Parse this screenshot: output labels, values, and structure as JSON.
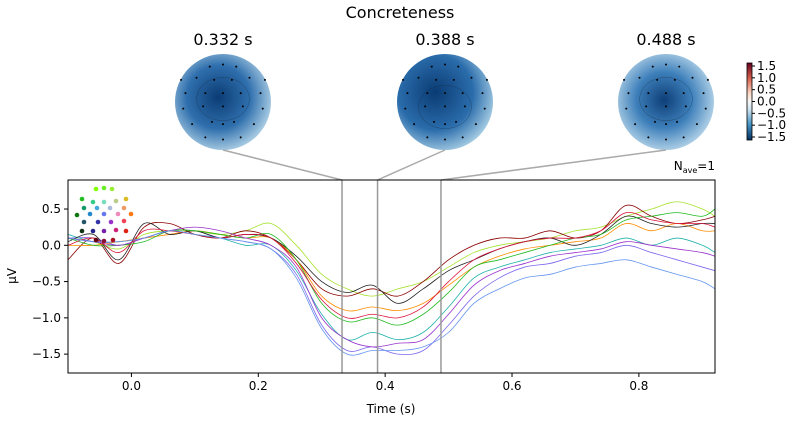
{
  "chart_data": {
    "type": "line",
    "title": "Concreteness",
    "xlabel": "Time (s)",
    "ylabel": "µV",
    "xlim": [
      -0.1,
      0.92
    ],
    "ylim": [
      -1.76,
      0.9
    ],
    "xticks": [
      "0.0",
      "0.2",
      "0.4",
      "0.6",
      "0.8"
    ],
    "yticks": [
      "0.5",
      "0.0",
      "−0.5",
      "−1.0",
      "−1.5"
    ],
    "annotation": {
      "prefix": "N",
      "subscript": "ave",
      "suffix": "=1"
    },
    "grid": false,
    "topomap_times": [
      0.332,
      0.388,
      0.488
    ],
    "topomap_labels": [
      "0.332 s",
      "0.388 s",
      "0.488 s"
    ],
    "colorbar": {
      "ticks": [
        "1.5",
        "1.0",
        "0.5",
        "0.0",
        "−0.5",
        "−1.0",
        "−1.5"
      ],
      "range": [
        -1.5,
        1.5
      ],
      "colormap": "RdBu_r"
    },
    "x": [
      -0.1,
      -0.06,
      -0.02,
      0.02,
      0.06,
      0.1,
      0.14,
      0.18,
      0.22,
      0.26,
      0.3,
      0.34,
      0.38,
      0.42,
      0.46,
      0.5,
      0.54,
      0.58,
      0.62,
      0.66,
      0.7,
      0.74,
      0.78,
      0.82,
      0.86,
      0.9,
      0.92
    ],
    "series": [
      {
        "color": "#a6e22e",
        "values": [
          0.1,
          0.05,
          -0.05,
          0.15,
          0.2,
          0.2,
          0.15,
          0.2,
          0.3,
          0.0,
          -0.4,
          -0.6,
          -0.7,
          -0.6,
          -0.5,
          -0.3,
          -0.1,
          0.0,
          0.05,
          0.1,
          0.2,
          0.25,
          0.4,
          0.5,
          0.6,
          0.5,
          0.4
        ]
      },
      {
        "color": "#7b68ee",
        "values": [
          0.1,
          0.1,
          0.0,
          0.1,
          0.2,
          0.2,
          0.1,
          0.05,
          -0.05,
          -0.4,
          -1.1,
          -1.45,
          -1.4,
          -1.5,
          -1.45,
          -1.1,
          -0.7,
          -0.45,
          -0.3,
          -0.25,
          -0.15,
          -0.1,
          0.0,
          -0.1,
          -0.2,
          -0.3,
          -0.35
        ]
      },
      {
        "color": "#8b0000",
        "values": [
          -0.2,
          0.1,
          -0.25,
          0.25,
          0.3,
          0.15,
          0.1,
          0.2,
          0.1,
          -0.2,
          -0.6,
          -0.7,
          -0.6,
          -0.7,
          -0.5,
          -0.2,
          0.0,
          0.1,
          0.1,
          0.2,
          0.1,
          0.2,
          0.55,
          0.4,
          0.3,
          0.35,
          0.4
        ]
      },
      {
        "color": "#20b2aa",
        "values": [
          0.15,
          0.05,
          0.05,
          0.1,
          0.2,
          0.15,
          0.1,
          0.0,
          0.0,
          -0.35,
          -0.95,
          -1.3,
          -1.2,
          -1.3,
          -1.2,
          -0.85,
          -0.45,
          -0.3,
          -0.2,
          -0.1,
          -0.05,
          0.0,
          0.1,
          0.0,
          0.1,
          0.0,
          -0.1
        ]
      },
      {
        "color": "#ff8c00",
        "values": [
          0.0,
          0.0,
          0.05,
          0.1,
          0.15,
          0.2,
          0.15,
          0.1,
          0.1,
          -0.2,
          -0.7,
          -0.9,
          -0.85,
          -0.9,
          -0.8,
          -0.55,
          -0.3,
          -0.15,
          -0.05,
          0.0,
          0.05,
          0.1,
          0.3,
          0.2,
          0.3,
          0.2,
          0.2
        ]
      },
      {
        "color": "#222222",
        "values": [
          0.05,
          0.15,
          -0.2,
          0.3,
          0.15,
          0.2,
          0.1,
          0.15,
          0.1,
          -0.15,
          -0.5,
          -0.65,
          -0.55,
          -0.8,
          -0.6,
          -0.35,
          -0.2,
          -0.05,
          0.05,
          0.1,
          0.0,
          0.15,
          0.4,
          0.3,
          0.25,
          0.3,
          0.3
        ]
      },
      {
        "color": "#22bb22",
        "values": [
          0.1,
          0.0,
          0.0,
          0.05,
          0.2,
          0.2,
          0.15,
          0.1,
          0.15,
          -0.2,
          -0.8,
          -1.05,
          -1.0,
          -1.1,
          -0.95,
          -0.65,
          -0.3,
          -0.2,
          -0.1,
          0.0,
          0.1,
          0.15,
          0.35,
          0.4,
          0.45,
          0.4,
          0.5
        ]
      },
      {
        "color": "#9932cc",
        "values": [
          0.1,
          0.05,
          0.0,
          0.1,
          0.2,
          0.25,
          0.2,
          0.1,
          0.0,
          -0.3,
          -1.0,
          -1.3,
          -1.4,
          -1.35,
          -1.3,
          -0.95,
          -0.55,
          -0.35,
          -0.25,
          -0.15,
          -0.1,
          -0.05,
          0.05,
          0.0,
          -0.05,
          -0.1,
          -0.15
        ]
      },
      {
        "color": "#dc143c",
        "values": [
          0.0,
          0.1,
          -0.1,
          0.2,
          0.2,
          0.15,
          0.1,
          0.15,
          0.1,
          -0.25,
          -0.75,
          -1.0,
          -0.95,
          -1.0,
          -0.85,
          -0.5,
          -0.2,
          -0.05,
          0.05,
          0.1,
          0.1,
          0.2,
          0.45,
          0.35,
          0.3,
          0.3,
          0.25
        ]
      },
      {
        "color": "#6495ed",
        "values": [
          0.1,
          0.05,
          0.05,
          0.1,
          0.2,
          0.15,
          0.1,
          0.05,
          -0.05,
          -0.45,
          -1.15,
          -1.5,
          -1.45,
          -1.45,
          -1.4,
          -1.2,
          -0.8,
          -0.6,
          -0.45,
          -0.4,
          -0.3,
          -0.25,
          -0.2,
          -0.3,
          -0.4,
          -0.5,
          -0.6
        ]
      }
    ]
  }
}
